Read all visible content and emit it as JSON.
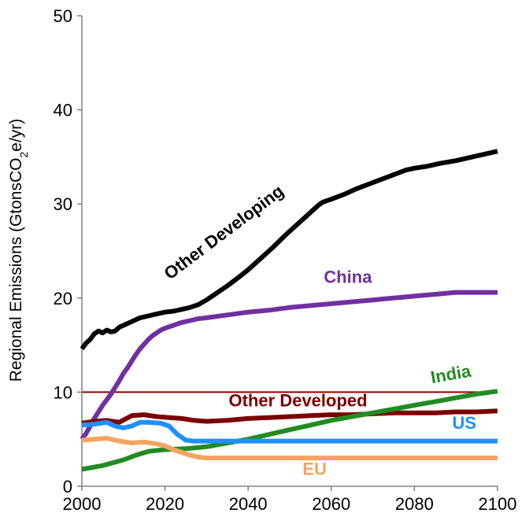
{
  "chart_data": {
    "type": "line",
    "ylabel": "Regional Emissions (GtonsCO",
    "ylabel_sub": "2",
    "ylabel_tail": "e/yr)",
    "xlim": [
      2000,
      2100
    ],
    "ylim": [
      0,
      50
    ],
    "x_ticks": [
      "2000",
      "2020",
      "2040",
      "2060",
      "2080",
      "2100"
    ],
    "y_ticks": [
      "0",
      "10",
      "20",
      "30",
      "40",
      "50"
    ],
    "grid": false,
    "reference_line": {
      "y": 10,
      "color": "#8b0000"
    },
    "series": [
      {
        "name": "Other Developing",
        "color": "#000000",
        "points": [
          [
            2000,
            14.6
          ],
          [
            2001,
            15.2
          ],
          [
            2002,
            15.6
          ],
          [
            2003,
            16.2
          ],
          [
            2004,
            16.5
          ],
          [
            2005,
            16.3
          ],
          [
            2006,
            16.6
          ],
          [
            2007,
            16.4
          ],
          [
            2008,
            16.5
          ],
          [
            2009,
            16.9
          ],
          [
            2010,
            17.1
          ],
          [
            2012,
            17.5
          ],
          [
            2014,
            17.9
          ],
          [
            2016,
            18.1
          ],
          [
            2018,
            18.3
          ],
          [
            2020,
            18.5
          ],
          [
            2022,
            18.6
          ],
          [
            2024,
            18.8
          ],
          [
            2026,
            19.0
          ],
          [
            2028,
            19.3
          ],
          [
            2030,
            19.8
          ],
          [
            2032,
            20.4
          ],
          [
            2035,
            21.3
          ],
          [
            2038,
            22.3
          ],
          [
            2040,
            23.0
          ],
          [
            2043,
            24.2
          ],
          [
            2046,
            25.4
          ],
          [
            2049,
            26.7
          ],
          [
            2052,
            27.9
          ],
          [
            2055,
            29.1
          ],
          [
            2057,
            29.9
          ],
          [
            2058,
            30.2
          ],
          [
            2060,
            30.5
          ],
          [
            2063,
            31.0
          ],
          [
            2066,
            31.6
          ],
          [
            2069,
            32.1
          ],
          [
            2072,
            32.6
          ],
          [
            2075,
            33.1
          ],
          [
            2078,
            33.6
          ],
          [
            2080,
            33.8
          ],
          [
            2083,
            34.0
          ],
          [
            2086,
            34.3
          ],
          [
            2090,
            34.6
          ],
          [
            2095,
            35.1
          ],
          [
            2100,
            35.6
          ]
        ],
        "label_x": 2035,
        "label_y": 26.5,
        "label_angle": -37
      },
      {
        "name": "China",
        "color": "#7030a0",
        "points": [
          [
            2000,
            5.0
          ],
          [
            2001,
            5.6
          ],
          [
            2002,
            6.4
          ],
          [
            2003,
            7.2
          ],
          [
            2004,
            7.9
          ],
          [
            2005,
            8.6
          ],
          [
            2006,
            9.2
          ],
          [
            2007,
            9.8
          ],
          [
            2008,
            10.5
          ],
          [
            2009,
            11.2
          ],
          [
            2010,
            12.0
          ],
          [
            2011,
            12.6
          ],
          [
            2012,
            13.3
          ],
          [
            2013,
            14.0
          ],
          [
            2014,
            14.6
          ],
          [
            2015,
            15.1
          ],
          [
            2016,
            15.6
          ],
          [
            2017,
            16.0
          ],
          [
            2018,
            16.3
          ],
          [
            2019,
            16.6
          ],
          [
            2020,
            16.8
          ],
          [
            2022,
            17.1
          ],
          [
            2024,
            17.4
          ],
          [
            2026,
            17.6
          ],
          [
            2028,
            17.8
          ],
          [
            2030,
            17.9
          ],
          [
            2035,
            18.2
          ],
          [
            2040,
            18.5
          ],
          [
            2045,
            18.7
          ],
          [
            2050,
            19.0
          ],
          [
            2055,
            19.2
          ],
          [
            2060,
            19.4
          ],
          [
            2065,
            19.6
          ],
          [
            2070,
            19.8
          ],
          [
            2075,
            20.0
          ],
          [
            2080,
            20.2
          ],
          [
            2085,
            20.4
          ],
          [
            2090,
            20.6
          ],
          [
            2095,
            20.6
          ],
          [
            2100,
            20.6
          ]
        ],
        "label_x": 2064,
        "label_y": 21.6,
        "label_angle": 0
      },
      {
        "name": "Other Developed",
        "color": "#7b0000",
        "points": [
          [
            2000,
            6.7
          ],
          [
            2003,
            6.9
          ],
          [
            2006,
            7.0
          ],
          [
            2009,
            6.8
          ],
          [
            2012,
            7.5
          ],
          [
            2015,
            7.6
          ],
          [
            2018,
            7.4
          ],
          [
            2021,
            7.3
          ],
          [
            2024,
            7.2
          ],
          [
            2027,
            7.0
          ],
          [
            2030,
            6.9
          ],
          [
            2035,
            7.0
          ],
          [
            2040,
            7.2
          ],
          [
            2045,
            7.3
          ],
          [
            2050,
            7.4
          ],
          [
            2055,
            7.5
          ],
          [
            2060,
            7.6
          ],
          [
            2065,
            7.6
          ],
          [
            2070,
            7.7
          ],
          [
            2075,
            7.8
          ],
          [
            2080,
            7.8
          ],
          [
            2085,
            7.8
          ],
          [
            2090,
            7.9
          ],
          [
            2095,
            7.9
          ],
          [
            2100,
            8.0
          ]
        ],
        "label_x": 2052,
        "label_y": 8.5,
        "label_angle": 0
      },
      {
        "name": "India",
        "color": "#228b22",
        "points": [
          [
            2000,
            1.8
          ],
          [
            2005,
            2.2
          ],
          [
            2010,
            2.8
          ],
          [
            2013,
            3.3
          ],
          [
            2016,
            3.7
          ],
          [
            2020,
            3.9
          ],
          [
            2025,
            4.0
          ],
          [
            2030,
            4.2
          ],
          [
            2035,
            4.6
          ],
          [
            2040,
            5.0
          ],
          [
            2045,
            5.5
          ],
          [
            2050,
            6.0
          ],
          [
            2055,
            6.5
          ],
          [
            2060,
            7.0
          ],
          [
            2065,
            7.4
          ],
          [
            2070,
            7.8
          ],
          [
            2075,
            8.2
          ],
          [
            2080,
            8.6
          ],
          [
            2085,
            9.0
          ],
          [
            2090,
            9.4
          ],
          [
            2095,
            9.8
          ],
          [
            2100,
            10.1
          ]
        ],
        "label_x": 2089,
        "label_y": 11.3,
        "label_angle": -10
      },
      {
        "name": "US",
        "color": "#1e90ff",
        "points": [
          [
            2000,
            6.5
          ],
          [
            2003,
            6.6
          ],
          [
            2006,
            6.8
          ],
          [
            2008,
            6.4
          ],
          [
            2010,
            6.2
          ],
          [
            2012,
            6.4
          ],
          [
            2014,
            6.8
          ],
          [
            2016,
            6.8
          ],
          [
            2019,
            6.7
          ],
          [
            2021,
            6.4
          ],
          [
            2023,
            5.5
          ],
          [
            2025,
            4.9
          ],
          [
            2027,
            4.8
          ],
          [
            2030,
            4.8
          ],
          [
            2040,
            4.8
          ],
          [
            2060,
            4.8
          ],
          [
            2080,
            4.8
          ],
          [
            2100,
            4.8
          ]
        ],
        "label_x": 2092,
        "label_y": 6.1,
        "label_angle": 0
      },
      {
        "name": "EU",
        "color": "#f4a460",
        "points": [
          [
            2000,
            4.9
          ],
          [
            2003,
            5.0
          ],
          [
            2006,
            5.1
          ],
          [
            2009,
            4.8
          ],
          [
            2012,
            4.6
          ],
          [
            2015,
            4.7
          ],
          [
            2018,
            4.5
          ],
          [
            2020,
            4.3
          ],
          [
            2022,
            3.9
          ],
          [
            2024,
            3.6
          ],
          [
            2026,
            3.3
          ],
          [
            2028,
            3.1
          ],
          [
            2030,
            3.0
          ],
          [
            2040,
            3.0
          ],
          [
            2060,
            3.0
          ],
          [
            2080,
            3.0
          ],
          [
            2100,
            3.0
          ]
        ],
        "label_x": 2056,
        "label_y": 1.2,
        "label_angle": 0
      }
    ]
  }
}
